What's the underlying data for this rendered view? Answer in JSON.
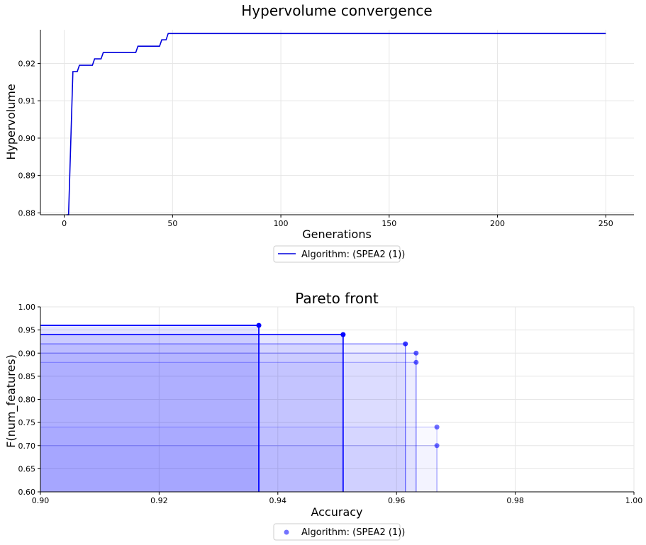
{
  "chart_data": [
    {
      "type": "line",
      "title": "Hypervolume convergence",
      "xlabel": "Generations",
      "ylabel": "Hypervolume",
      "xlim": [
        -11,
        263
      ],
      "ylim": [
        0.8795,
        0.929
      ],
      "xticks": [
        0,
        50,
        100,
        150,
        200,
        250
      ],
      "yticks": [
        0.88,
        0.89,
        0.9,
        0.91,
        0.92
      ],
      "ytick_labels": [
        "0.88",
        "0.89",
        "0.90",
        "0.91",
        "0.92"
      ],
      "grid": true,
      "legend_position": "bottom-center",
      "series": [
        {
          "name": "Algorithm: (SPEA2 (1))",
          "color": "#0000dd",
          "x": [
            1,
            2,
            4,
            6,
            7,
            13,
            14,
            17,
            18,
            33,
            34,
            44,
            45,
            47,
            48,
            250
          ],
          "y": [
            0.8795,
            0.8795,
            0.9178,
            0.9178,
            0.9195,
            0.9195,
            0.9212,
            0.9212,
            0.9229,
            0.9229,
            0.9246,
            0.9246,
            0.9263,
            0.9263,
            0.928,
            0.928
          ]
        }
      ]
    },
    {
      "type": "scatter",
      "title": "Pareto front",
      "xlabel": "Accuracy",
      "ylabel": "F(num_features)",
      "xlim": [
        0.9,
        1.0
      ],
      "ylim": [
        0.6,
        1.0
      ],
      "xticks": [
        0.9,
        0.92,
        0.94,
        0.96,
        0.98,
        1.0
      ],
      "xtick_labels": [
        "0.90",
        "0.92",
        "0.94",
        "0.96",
        "0.98",
        "1.00"
      ],
      "yticks": [
        0.6,
        0.65,
        0.7,
        0.75,
        0.8,
        0.85,
        0.9,
        0.95,
        1.0
      ],
      "ytick_labels": [
        "0.60",
        "0.65",
        "0.70",
        "0.75",
        "0.80",
        "0.85",
        "0.90",
        "0.95",
        "1.00"
      ],
      "grid": true,
      "legend_position": "bottom-center",
      "series": [
        {
          "name": "Algorithm: (SPEA2 (1))",
          "color": "#0000ff",
          "points": [
            {
              "x": 0.9368,
              "y": 0.96,
              "strength": 1.0
            },
            {
              "x": 0.951,
              "y": 0.94,
              "strength": 0.95
            },
            {
              "x": 0.9615,
              "y": 0.92,
              "strength": 0.6
            },
            {
              "x": 0.9633,
              "y": 0.9,
              "strength": 0.35
            },
            {
              "x": 0.9633,
              "y": 0.88,
              "strength": 0.3
            },
            {
              "x": 0.9668,
              "y": 0.74,
              "strength": 0.22
            },
            {
              "x": 0.9668,
              "y": 0.7,
              "strength": 0.22
            }
          ]
        }
      ]
    }
  ]
}
